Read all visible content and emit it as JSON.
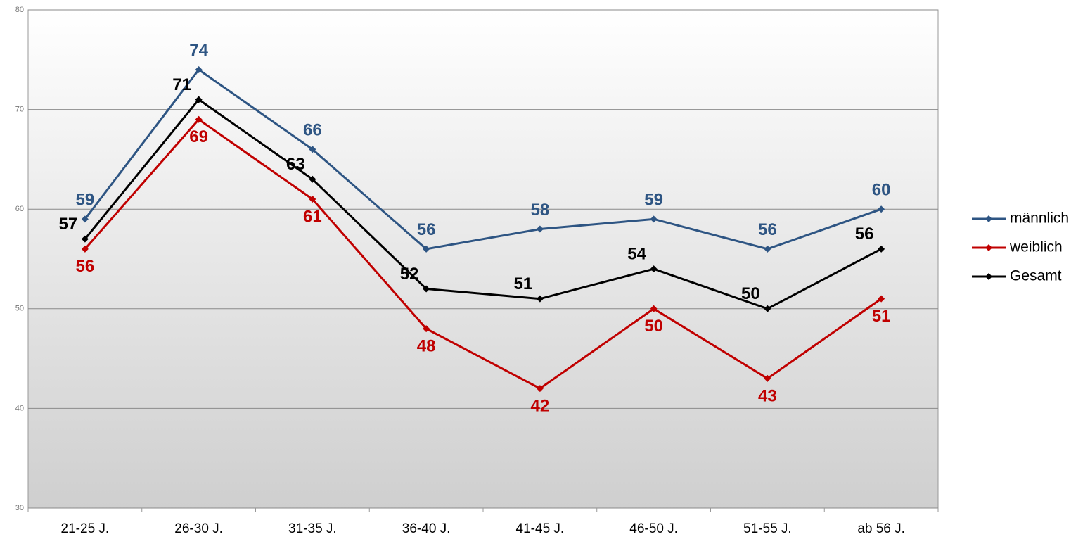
{
  "chart_data": {
    "type": "line",
    "categories": [
      "21-25 J.",
      "26-30 J.",
      "31-35 J.",
      "36-40 J.",
      "41-45 J.",
      "46-50 J.",
      "51-55 J.",
      "ab 56 J."
    ],
    "series": [
      {
        "name": "männlich",
        "color": "#2e5583",
        "values": [
          59,
          74,
          66,
          56,
          58,
          59,
          56,
          60
        ]
      },
      {
        "name": "weiblich",
        "color": "#c00000",
        "values": [
          56,
          69,
          61,
          48,
          42,
          50,
          43,
          51
        ]
      },
      {
        "name": "Gesamt",
        "color": "#000000",
        "values": [
          57,
          71,
          63,
          52,
          51,
          54,
          50,
          56
        ]
      }
    ],
    "ylim": [
      30,
      80
    ],
    "yticks": [
      30,
      40,
      50,
      60,
      70,
      80
    ],
    "grid": true,
    "legend": "right"
  }
}
